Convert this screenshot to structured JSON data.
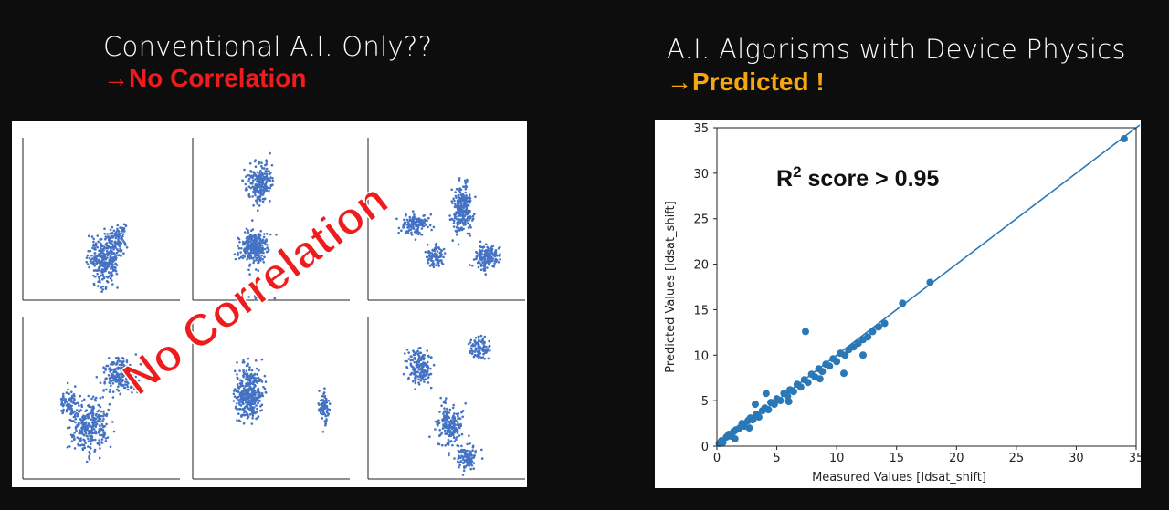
{
  "left": {
    "title": "Conventional A.I. Only??",
    "subtitle": "→No Correlation",
    "overlay_text": "No Correlation",
    "title_color": "#ffffff",
    "subtitle_color": "#ee1c1c",
    "overlay_color": "#ee1c1c",
    "point_color": "#4472c4"
  },
  "right": {
    "title": "A.I. Algorisms with Device Physics",
    "subtitle": "→Predicted !",
    "subtitle_color": "#f5a70d",
    "annotation": {
      "prefix": "R",
      "superscript": "2",
      "suffix": " score > 0.95"
    }
  },
  "chart_data": [
    {
      "type": "scatter",
      "title": "",
      "xlabel": "",
      "ylabel": "",
      "grid": false,
      "panels": [
        {
          "position": "top-left",
          "description_points": "dense blob"
        },
        {
          "position": "top-middle",
          "description_points": "tall blob"
        },
        {
          "position": "top-right",
          "description_points": "arch-shaped cluster"
        },
        {
          "position": "bottom-left",
          "description_points": "diagonal blob"
        },
        {
          "position": "bottom-middle",
          "description_points": "tall blob plus narrow side cluster"
        },
        {
          "position": "bottom-right",
          "description_points": "X-shaped cluster"
        }
      ]
    },
    {
      "type": "scatter",
      "title": "",
      "xlabel": "Measured Values [Idsat_shift]",
      "ylabel": "Predicted Values [Idsat_shift]",
      "xlim": [
        0,
        35
      ],
      "ylim": [
        0,
        35
      ],
      "xticks": [
        0,
        5,
        10,
        15,
        20,
        25,
        30,
        35
      ],
      "yticks": [
        0,
        5,
        10,
        15,
        20,
        25,
        30,
        35
      ],
      "grid": false,
      "point_color": "#2a78b6",
      "fit_line": {
        "x": [
          0,
          35.3
        ],
        "y": [
          0,
          35.3
        ]
      },
      "x": [
        0.2,
        0.4,
        0.5,
        0.8,
        1.0,
        1.2,
        1.4,
        1.6,
        1.9,
        2.1,
        2.3,
        2.6,
        2.8,
        3.0,
        3.3,
        3.5,
        3.8,
        4.0,
        4.3,
        4.5,
        4.8,
        5.0,
        5.3,
        5.6,
        5.9,
        6.1,
        6.4,
        6.7,
        7.0,
        7.3,
        7.6,
        7.9,
        8.2,
        8.5,
        8.8,
        9.1,
        9.4,
        9.7,
        10.0,
        10.3,
        10.7,
        11.0,
        11.4,
        11.8,
        12.2,
        12.6,
        13.0,
        13.5,
        14.0,
        15.5,
        17.8,
        34.0,
        7.4,
        12.2,
        10.6,
        3.2,
        4.1,
        6.0,
        8.6,
        1.5,
        2.7
      ],
      "y": [
        0.3,
        0.6,
        0.4,
        1.0,
        1.3,
        1.1,
        1.6,
        1.8,
        2.0,
        2.5,
        2.2,
        2.8,
        3.1,
        2.9,
        3.5,
        3.2,
        3.9,
        4.2,
        4.0,
        4.8,
        4.6,
        5.2,
        5.0,
        5.8,
        5.5,
        6.2,
        6.0,
        6.8,
        6.5,
        7.3,
        7.0,
        7.9,
        7.6,
        8.5,
        8.2,
        9.0,
        8.8,
        9.6,
        9.3,
        10.2,
        10.0,
        10.6,
        10.9,
        11.3,
        11.7,
        12.0,
        12.6,
        13.1,
        13.5,
        15.7,
        18.0,
        33.8,
        12.6,
        10.0,
        8.0,
        4.6,
        5.8,
        4.9,
        7.4,
        0.8,
        2.0
      ]
    }
  ]
}
